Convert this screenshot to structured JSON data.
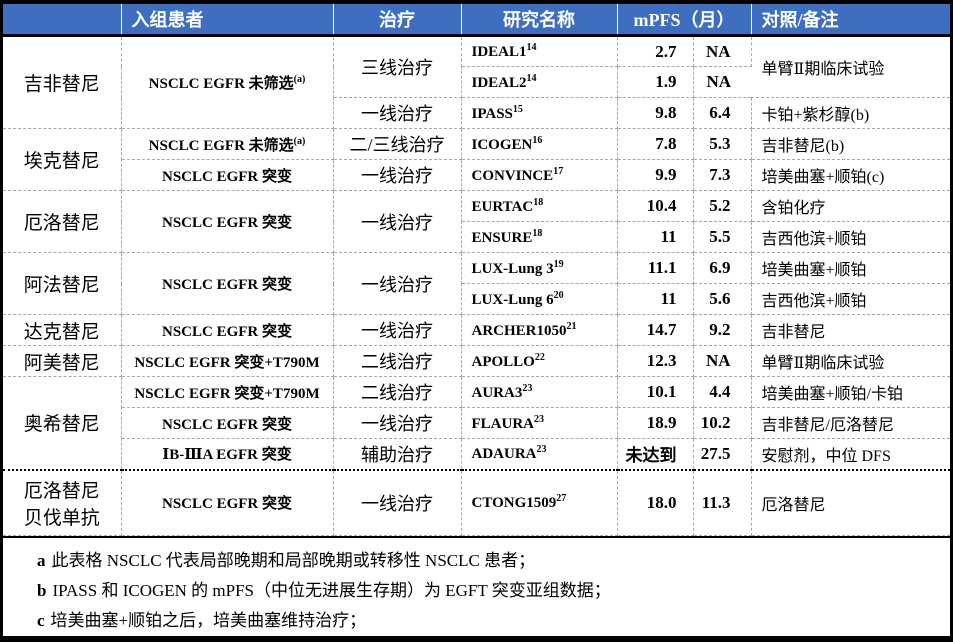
{
  "header": {
    "corner": "",
    "patients": "入组患者",
    "treatment": "治疗",
    "study": "研究名称",
    "mpfs": "mPFS（月）",
    "control": "对照/备注"
  },
  "colors": {
    "header_bg": "#3d6ebf",
    "header_text": "#ffffff",
    "grid_dashed": "#a8a8a8",
    "outer_border": "#000000"
  },
  "rows": [
    {
      "drug": "吉非替尼",
      "patients": "NSCLC EGFR 未筛选",
      "psup": "(a)",
      "treat": "三线治疗",
      "study": "IDEAL1",
      "ref": "14",
      "v1": "2.7",
      "v2": "NA",
      "remark": "单臂Ⅱ期临床试验"
    },
    {
      "study": "IDEAL2",
      "ref": "14",
      "v1": "1.9",
      "v2": "NA"
    },
    {
      "treat": "一线治疗",
      "study": "IPASS",
      "ref": "15",
      "v1": "9.8",
      "v2": "6.4",
      "remark": "卡铂+紫杉醇(b)"
    },
    {
      "drug": "埃克替尼",
      "patients": "NSCLC EGFR 未筛选",
      "psup": "(a)",
      "treat": "二/三线治疗",
      "study": "ICOGEN",
      "ref": "16",
      "v1": "7.8",
      "v2": "5.3",
      "remark": "吉非替尼(b)"
    },
    {
      "patients": "NSCLC EGFR 突变",
      "treat": "一线治疗",
      "study": "CONVINCE",
      "ref": "17",
      "v1": "9.9",
      "v2": "7.3",
      "remark": "培美曲塞+顺铂(c)"
    },
    {
      "drug": "厄洛替尼",
      "patients": "NSCLC EGFR 突变",
      "treat": "一线治疗",
      "study": "EURTAC",
      "ref": "18",
      "v1": "10.4",
      "v2": "5.2",
      "remark": "含铂化疗"
    },
    {
      "study": "ENSURE",
      "ref": "18",
      "v1": "11",
      "v2": "5.5",
      "remark": "吉西他滨+顺铂"
    },
    {
      "drug": "阿法替尼",
      "patients": "NSCLC EGFR 突变",
      "treat": "一线治疗",
      "study": "LUX-Lung 3",
      "ref": "19",
      "v1": "11.1",
      "v2": "6.9",
      "remark": "培美曲塞+顺铂"
    },
    {
      "study": "LUX-Lung 6",
      "ref": "20",
      "v1": "11",
      "v2": "5.6",
      "remark": "吉西他滨+顺铂"
    },
    {
      "drug": "达克替尼",
      "patients": "NSCLC EGFR 突变",
      "treat": "一线治疗",
      "study": "ARCHER1050",
      "ref": "21",
      "v1": "14.7",
      "v2": "9.2",
      "remark": "吉非替尼"
    },
    {
      "drug": "阿美替尼",
      "patients": "NSCLC EGFR 突变+T790M",
      "treat": "二线治疗",
      "study": "APOLLO",
      "ref": "22",
      "v1": "12.3",
      "v2": "NA",
      "remark": "单臂Ⅱ期临床试验"
    },
    {
      "drug": "奥希替尼",
      "patients": "NSCLC EGFR 突变+T790M",
      "treat": "二线治疗",
      "study": "AURA3",
      "ref": "23",
      "v1": "10.1",
      "v2": "4.4",
      "remark": "培美曲塞+顺铂/卡铂"
    },
    {
      "patients": "NSCLC EGFR 突变",
      "treat": "一线治疗",
      "study": "FLAURA",
      "ref": "23",
      "v1": "18.9",
      "v2": "10.2",
      "remark": "吉非替尼/厄洛替尼"
    },
    {
      "patients": "ⅠB-ⅢA EGFR 突变",
      "treat": "辅助治疗",
      "study": "ADAURA",
      "ref": "23",
      "v1": "未达到",
      "v2": "27.5",
      "remark": "安慰剂，中位 DFS"
    },
    {
      "drug": "厄洛替尼",
      "drug2": "贝伐单抗",
      "patients": "NSCLC EGFR 突变",
      "treat": "一线治疗",
      "study": "CTONG1509",
      "ref": "27",
      "v1": "18.0",
      "v2": "11.3",
      "remark": "厄洛替尼"
    }
  ],
  "footnotes": [
    {
      "key": "a",
      "text": "此表格 NSCLC 代表局部晚期和局部晚期或转移性 NSCLC 患者；"
    },
    {
      "key": "b",
      "text": "IPASS 和 ICOGEN 的 mPFS（中位无进展生存期）为 EGFT 突变亚组数据；"
    },
    {
      "key": "c",
      "text": "培美曲塞+顺铂之后，培美曲塞维持治疗；"
    }
  ]
}
